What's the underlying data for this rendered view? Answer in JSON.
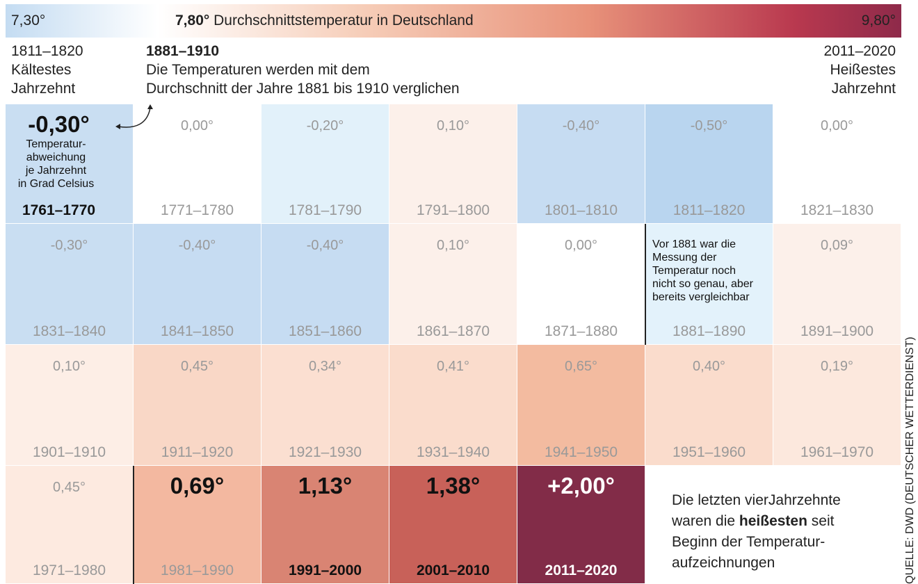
{
  "header": {
    "scale_min": "7,30°",
    "scale_mid_value": "7,80°",
    "scale_mid_text": "Durchschnittstemperatur in Deutschland",
    "scale_max": "9,80°",
    "left": {
      "period": "1811–1820",
      "lines": [
        "Kältestes",
        "Jahrzehnt"
      ]
    },
    "middle": {
      "period": "1881–1910",
      "lines": [
        "Die Temperaturen werden mit dem",
        "Durchschnitt der Jahre 1881 bis 1910 verglichen"
      ]
    },
    "right": {
      "period": "2011–2020",
      "lines": [
        "Heißestes",
        "Jahrzehnt"
      ]
    }
  },
  "legend": [
    "Temperatur-",
    "abweichung",
    "je Jahrzehnt",
    "in Grad Celsius"
  ],
  "cells": [
    {
      "value": "-0,30°",
      "period": "1761–1770"
    },
    {
      "value": "0,00°",
      "period": "1771–1780"
    },
    {
      "value": "-0,20°",
      "period": "1781–1790"
    },
    {
      "value": "0,10°",
      "period": "1791–1800"
    },
    {
      "value": "-0,40°",
      "period": "1801–1810"
    },
    {
      "value": "-0,50°",
      "period": "1811–1820"
    },
    {
      "value": "0,00°",
      "period": "1821–1830"
    },
    {
      "value": "-0,30°",
      "period": "1831–1840"
    },
    {
      "value": "-0,40°",
      "period": "1841–1850"
    },
    {
      "value": "-0,40°",
      "period": "1851–1860"
    },
    {
      "value": "0,10°",
      "period": "1861–1870"
    },
    {
      "value": "0,00°",
      "period": "1871–1880"
    },
    {
      "note": [
        "Vor 1881 war die",
        "Messung  der",
        "Temperatur noch",
        "nicht so genau, aber",
        "bereits vergleichbar"
      ],
      "period": "1881–1890"
    },
    {
      "value": "0,09°",
      "period": "1891–1900"
    },
    {
      "value": "0,10°",
      "period": "1901–1910"
    },
    {
      "value": "0,45°",
      "period": "1911–1920"
    },
    {
      "value": "0,34°",
      "period": "1921–1930"
    },
    {
      "value": "0,41°",
      "period": "1931–1940"
    },
    {
      "value": "0,65°",
      "period": "1941–1950"
    },
    {
      "value": "0,40°",
      "period": "1951–1960"
    },
    {
      "value": "0,19°",
      "period": "1961–1970"
    },
    {
      "value": "0,45°",
      "period": "1971–1980"
    },
    {
      "value": "0,69°",
      "period": "1981–1990"
    },
    {
      "value": "1,13°",
      "period": "1991–2000"
    },
    {
      "value": "1,38°",
      "period": "2001–2010"
    },
    {
      "value": "+2,00°",
      "period": "2011–2020"
    }
  ],
  "closing": {
    "line1": "Die letzten vierJahrzehnte",
    "line2_a": "waren die",
    "line2_bold": "heißesten",
    "line2_b": "seit",
    "line3": "Beginn der Temperatur-",
    "line4": "aufzeichnungen"
  },
  "source": "QUELLE: DWD (DEUTSCHER WETTERDIENST)"
}
